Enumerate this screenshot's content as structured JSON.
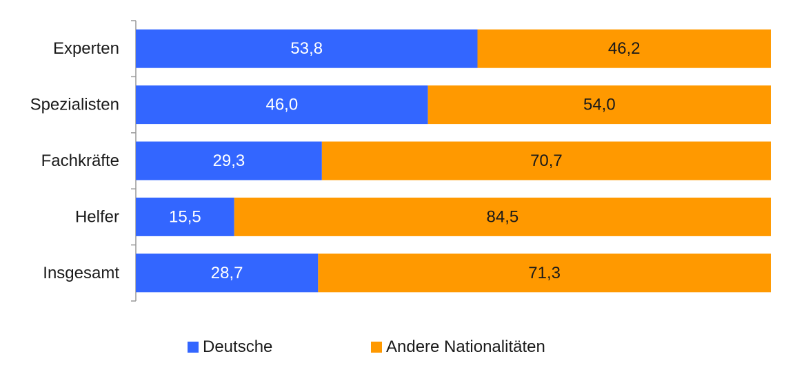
{
  "chart_data": {
    "type": "bar",
    "orientation": "horizontal",
    "stacked": true,
    "categories": [
      "Experten",
      "Spezialisten",
      "Fachkräfte",
      "Helfer",
      "Insgesamt"
    ],
    "series": [
      {
        "name": "Deutsche",
        "color": "#3366ff",
        "label_color": "#ffffff",
        "values": [
          53.8,
          46.0,
          29.3,
          15.5,
          28.7
        ],
        "labels": [
          "53,8",
          "46,0",
          "29,3",
          "15,5",
          "28,7"
        ]
      },
      {
        "name": "Andere Nationalitäten",
        "color": "#ff9900",
        "label_color": "#1a1a1a",
        "values": [
          46.2,
          54.0,
          70.7,
          84.5,
          71.3
        ],
        "labels": [
          "46,2",
          "54,0",
          "70,7",
          "84,5",
          "71,3"
        ]
      }
    ],
    "xlim": [
      0,
      100
    ],
    "title": "",
    "xlabel": "",
    "ylabel": "",
    "grid": false,
    "legend_position": "bottom"
  },
  "legend": {
    "items": [
      {
        "label": "Deutsche",
        "color": "#3366ff"
      },
      {
        "label": "Andere Nationalitäten",
        "color": "#ff9900"
      }
    ]
  }
}
